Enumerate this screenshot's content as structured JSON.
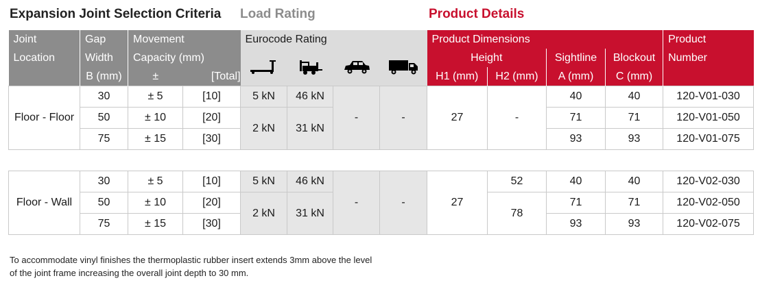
{
  "titles": {
    "selection": "Expansion Joint Selection Criteria",
    "load": "Load Rating",
    "product": "Product Details"
  },
  "header": {
    "joint": [
      "Joint",
      "Location"
    ],
    "gap": [
      "Gap",
      "Width",
      "B (mm)"
    ],
    "movement": [
      "Movement",
      "Capacity (mm)",
      "±",
      "[Total]"
    ],
    "eurocode": "Eurocode Rating",
    "vehicles": [
      "pallet-truck-icon",
      "forklift-icon",
      "car-icon",
      "truck-icon"
    ],
    "dimensions": "Product Dimensions",
    "height": "Height",
    "h1": "H1 (mm)",
    "h2": "H2 (mm)",
    "sightline": [
      "Sightline",
      "A (mm)"
    ],
    "blockout": [
      "Blockout",
      "C (mm)"
    ],
    "product": [
      "Product",
      "Number"
    ]
  },
  "groups": [
    {
      "location": "Floor - Floor",
      "rows": [
        {
          "gap": "30",
          "pm": "± 5",
          "total": "[10]",
          "sightline": "40",
          "blockout": "40",
          "product": "120-V01-030"
        },
        {
          "gap": "50",
          "pm": "± 10",
          "total": "[20]",
          "sightline": "71",
          "blockout": "71",
          "product": "120-V01-050"
        },
        {
          "gap": "75",
          "pm": "± 15",
          "total": "[30]",
          "sightline": "93",
          "blockout": "93",
          "product": "120-V01-075"
        }
      ],
      "load_first": [
        "5 kN",
        "46 kN"
      ],
      "load_rest": [
        "2 kN",
        "31 kN"
      ],
      "car": "-",
      "truck": "-",
      "h1": "27",
      "h2": "-"
    },
    {
      "location": "Floor - Wall",
      "rows": [
        {
          "gap": "30",
          "pm": "± 5",
          "total": "[10]",
          "sightline": "40",
          "blockout": "40",
          "product": "120-V02-030"
        },
        {
          "gap": "50",
          "pm": "± 10",
          "total": "[20]",
          "sightline": "71",
          "blockout": "71",
          "product": "120-V02-050"
        },
        {
          "gap": "75",
          "pm": "± 15",
          "total": "[30]",
          "sightline": "93",
          "blockout": "93",
          "product": "120-V02-075"
        }
      ],
      "load_first": [
        "5 kN",
        "46 kN"
      ],
      "load_rest": [
        "2 kN",
        "31 kN"
      ],
      "car": "-",
      "truck": "-",
      "h1": "27",
      "h2_first": "52",
      "h2_rest": "78"
    }
  ],
  "note": [
    "To accommodate vinyl finishes the thermoplastic rubber insert extends 3mm above the level",
    "of the joint frame increasing the overall joint depth to 30 mm."
  ]
}
